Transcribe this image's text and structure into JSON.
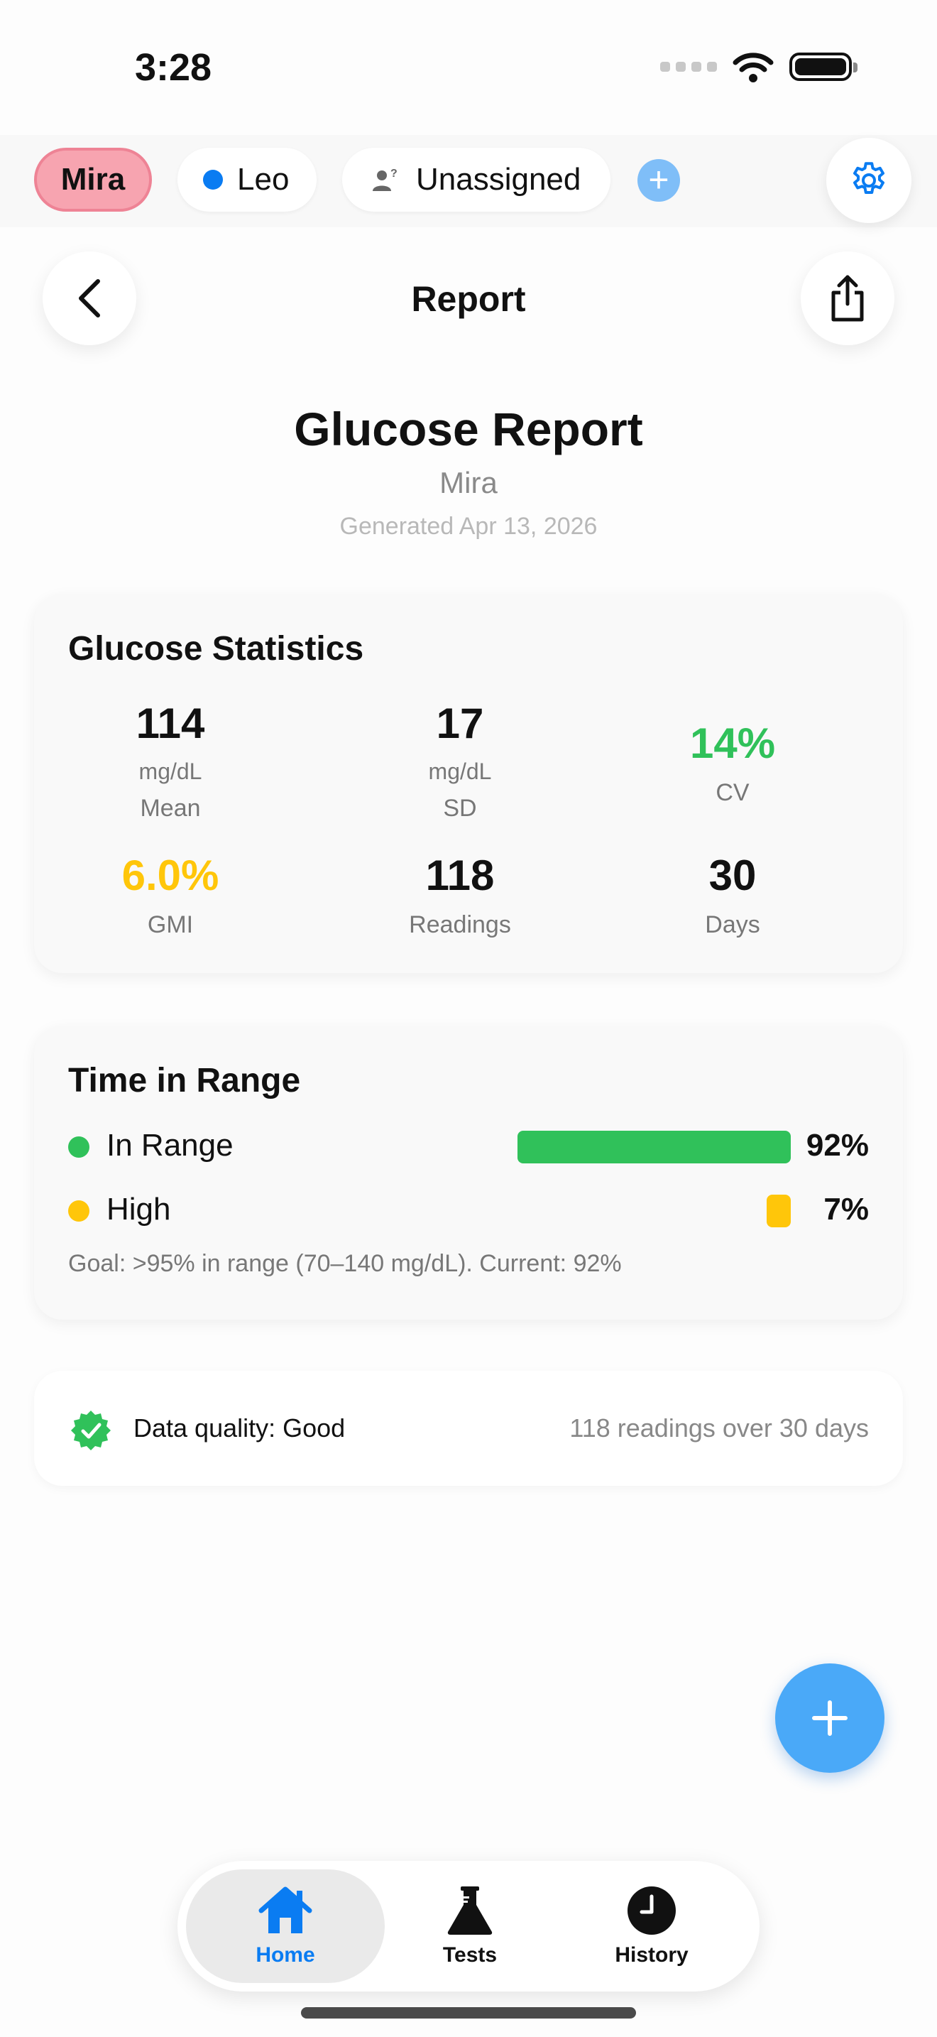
{
  "status_bar": {
    "time": "3:28"
  },
  "profiles": {
    "items": [
      {
        "label": "Mira"
      },
      {
        "label": "Leo"
      },
      {
        "label": "Unassigned"
      }
    ],
    "add_label": "+"
  },
  "nav": {
    "title": "Report"
  },
  "report": {
    "title": "Glucose Report",
    "name": "Mira",
    "generated": "Generated Apr 13, 2026"
  },
  "stats": {
    "title": "Glucose Statistics",
    "mean": {
      "value": "114",
      "unit": "mg/dL",
      "label": "Mean"
    },
    "sd": {
      "value": "17",
      "unit": "mg/dL",
      "label": "SD"
    },
    "cv": {
      "value": "14%",
      "label": "CV"
    },
    "gmi": {
      "value": "6.0%",
      "label": "GMI"
    },
    "readings": {
      "value": "118",
      "label": "Readings"
    },
    "days": {
      "value": "30",
      "label": "Days"
    }
  },
  "time_in_range": {
    "title": "Time in Range",
    "rows": [
      {
        "label": "In Range",
        "percent_label": "92%",
        "percent": 92,
        "color": "#30c15a"
      },
      {
        "label": "High",
        "percent_label": "7%",
        "percent": 7,
        "color": "#ffc60a"
      }
    ],
    "goal": "Goal: >95% in range (70–140 mg/dL). Current: 92%"
  },
  "data_quality": {
    "label": "Data quality: Good",
    "summary": "118 readings over 30 days"
  },
  "colors": {
    "accent": "#0a7cf2",
    "good": "#30c15a",
    "warning": "#ffc60a",
    "fab": "#4aa9f8"
  },
  "tabs": [
    {
      "label": "Home",
      "icon": "house-icon"
    },
    {
      "label": "Tests",
      "icon": "flask-icon"
    },
    {
      "label": "History",
      "icon": "clock-icon"
    }
  ]
}
